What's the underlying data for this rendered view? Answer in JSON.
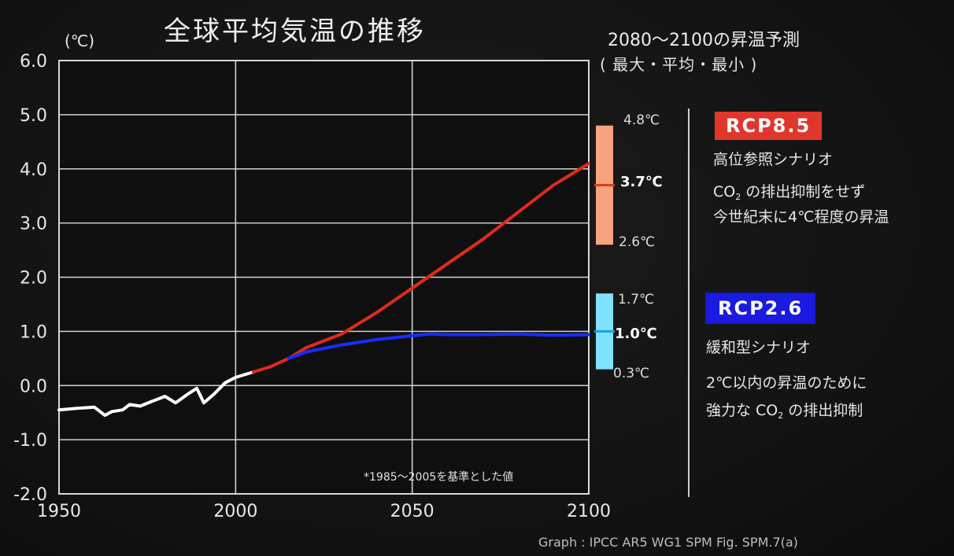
{
  "title": "全球平均気温の推移",
  "unit_label": "(℃)",
  "note": "*1985～2005を基準とした値",
  "source": "Graph : IPCC AR5 WG1  SPM Fig. SPM.7(a)",
  "projection": {
    "heading": "2080～2100の昇温予測",
    "subheading": "( 最大・平均・最小 )",
    "rcp85": {
      "max_label": "4.8℃",
      "mean_label": "3.7℃",
      "min_label": "2.6℃",
      "color": "#f7a37f"
    },
    "rcp26": {
      "max_label": "1.7℃",
      "mean_label": "1.0℃",
      "min_label": "0.3℃",
      "color": "#7fe3ff"
    }
  },
  "scenarios": {
    "rcp85": {
      "badge": "RCP8.5",
      "name": "高位参照シナリオ",
      "desc_line1_prefix": "CO",
      "desc_line1_sub": "2",
      "desc_line1_suffix": " の排出抑制をせず",
      "desc_line2": "今世紀末に4℃程度の昇温"
    },
    "rcp26": {
      "badge": "RCP2.6",
      "name": "緩和型シナリオ",
      "desc_line1": "2℃以内の昇温のために",
      "desc_line2_prefix": "強力な CO",
      "desc_line2_sub": "2",
      "desc_line2_suffix": " の排出抑制"
    }
  },
  "chart_data": {
    "type": "line",
    "xlim": [
      1950,
      2100
    ],
    "ylim": [
      -2.0,
      6.0
    ],
    "x_ticks": [
      "1950",
      "2000",
      "2050",
      "2100"
    ],
    "y_ticks": [
      "6.0",
      "5.0",
      "4.0",
      "3.0",
      "2.0",
      "1.0",
      "0.0",
      "-1.0",
      "-2.0"
    ],
    "grid": true,
    "series": [
      {
        "color": "#ffffff",
        "x": [
          1950,
          1955,
          1960,
          1963,
          1965,
          1968,
          1970,
          1973,
          1976,
          1980,
          1983,
          1986,
          1989,
          1991,
          1994,
          1997,
          2000,
          2005
        ],
        "y": [
          -0.45,
          -0.42,
          -0.4,
          -0.55,
          -0.48,
          -0.45,
          -0.35,
          -0.38,
          -0.3,
          -0.2,
          -0.32,
          -0.18,
          -0.05,
          -0.32,
          -0.15,
          0.05,
          0.15,
          0.25
        ]
      },
      {
        "color": "#e02a1c",
        "x": [
          2005,
          2010,
          2015,
          2020,
          2030,
          2040,
          2050,
          2060,
          2070,
          2080,
          2090,
          2100
        ],
        "y": [
          0.25,
          0.35,
          0.5,
          0.7,
          0.95,
          1.35,
          1.8,
          2.25,
          2.7,
          3.2,
          3.7,
          4.1
        ]
      },
      {
        "color": "#1a2cff",
        "x": [
          2015,
          2020,
          2030,
          2040,
          2050,
          2055,
          2060,
          2070,
          2080,
          2090,
          2100
        ],
        "y": [
          0.5,
          0.62,
          0.75,
          0.85,
          0.92,
          0.95,
          0.94,
          0.94,
          0.95,
          0.93,
          0.94
        ]
      }
    ]
  }
}
